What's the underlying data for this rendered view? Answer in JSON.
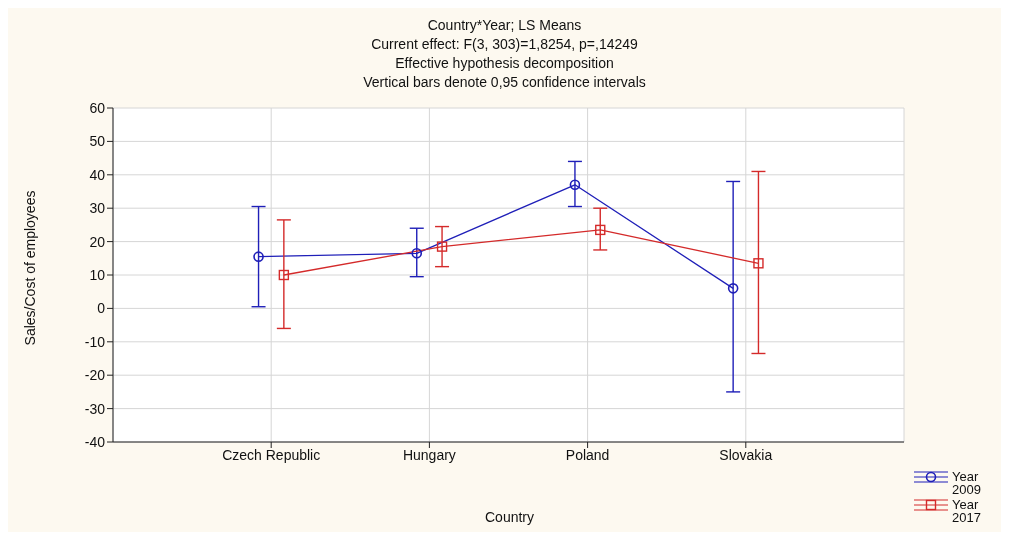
{
  "chart_data": {
    "type": "line",
    "title": "Country*Year; LS Means",
    "subtitle": "Current effect: F(3, 303)=1,8254, p=,14249",
    "annotations": [
      "Effective hypothesis decomposition",
      "Vertical bars denote 0,95 confidence intervals"
    ],
    "xlabel": "Country",
    "ylabel": "Sales/Cost of employees",
    "categories": [
      "Czech Republic",
      "Hungary",
      "Poland",
      "Slovakia"
    ],
    "series": [
      {
        "name": "Year 2009",
        "color": "#1f1fb8",
        "marker": "circle",
        "values": [
          15.5,
          16.5,
          37,
          6
        ],
        "errors": [
          [
            0.5,
            30.5
          ],
          [
            9.5,
            24
          ],
          [
            30.5,
            44
          ],
          [
            -25,
            38
          ]
        ]
      },
      {
        "name": "Year 2017",
        "color": "#d42a2a",
        "marker": "square",
        "values": [
          10,
          18.5,
          23.5,
          13.5
        ],
        "errors": [
          [
            -6,
            26.5
          ],
          [
            12.5,
            24.5
          ],
          [
            17.5,
            30
          ],
          [
            -13.5,
            41
          ]
        ]
      }
    ],
    "ylim": [
      -40,
      60
    ],
    "yticks": [
      -40,
      -30,
      -20,
      -10,
      0,
      10,
      20,
      30,
      40,
      50,
      60
    ],
    "grid": true,
    "legend": "bottom right"
  }
}
